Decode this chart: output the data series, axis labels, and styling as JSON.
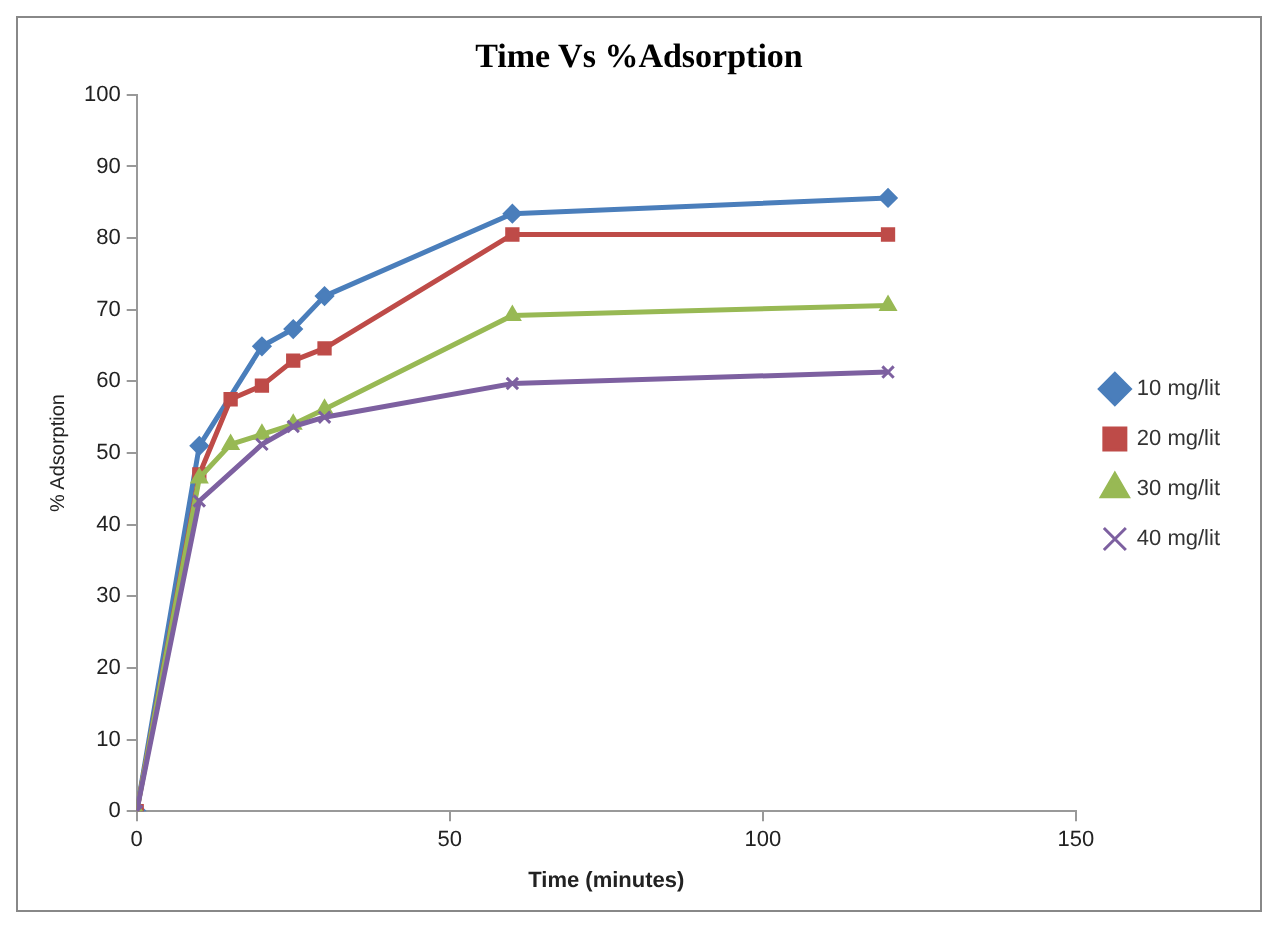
{
  "chart_data": {
    "type": "line",
    "title": "Time Vs %Adsorption",
    "xlabel": "Time (minutes)",
    "ylabel": "% Adsorption",
    "xlim": [
      0,
      150
    ],
    "xticks": [
      0,
      50,
      100,
      150
    ],
    "ylim": [
      0,
      100
    ],
    "yticks": [
      0,
      10,
      20,
      30,
      40,
      50,
      60,
      70,
      80,
      90,
      100
    ],
    "grid": false,
    "legend": "right",
    "series": [
      {
        "name": "10 mg/lit",
        "color": "#4a7ebb",
        "marker": "diamond",
        "x": [
          0,
          10,
          20,
          25,
          30,
          60,
          120
        ],
        "values": [
          0,
          51,
          64.9,
          67.3,
          71.9,
          83.4,
          85.6
        ]
      },
      {
        "name": "20 mg/lit",
        "color": "#be4b48",
        "marker": "square",
        "x": [
          0,
          10,
          15,
          20,
          25,
          30,
          60,
          120
        ],
        "values": [
          0,
          47,
          57.5,
          59.4,
          62.9,
          64.6,
          80.5,
          80.5
        ]
      },
      {
        "name": "30 mg/lit",
        "color": "#98b954",
        "marker": "triangle",
        "x": [
          0,
          10,
          15,
          20,
          25,
          30,
          60,
          120
        ],
        "values": [
          0,
          46.5,
          51.2,
          52.6,
          54,
          56.1,
          69.2,
          70.6
        ]
      },
      {
        "name": "40 mg/lit",
        "color": "#7d60a0",
        "marker": "cross",
        "x": [
          0,
          10,
          20,
          25,
          30,
          60,
          120
        ],
        "values": [
          0,
          43.3,
          51.2,
          53.7,
          55,
          59.7,
          61.3
        ]
      }
    ]
  }
}
